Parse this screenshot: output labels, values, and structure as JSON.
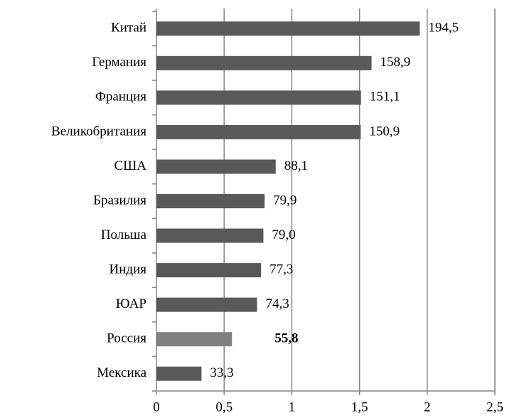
{
  "chart_data": {
    "type": "barh",
    "categories": [
      "Китай",
      "Германия",
      "Франция",
      "Великобритания",
      "США",
      "Бразилия",
      "Польша",
      "Индия",
      "ЮАР",
      "Россия",
      "Мексика"
    ],
    "values": [
      1.945,
      1.589,
      1.511,
      1.509,
      0.881,
      0.799,
      0.79,
      0.773,
      0.743,
      0.558,
      0.333
    ],
    "value_labels": [
      "194,5",
      "158,9",
      "151,1",
      "150,9",
      "88,1",
      "79,9",
      "79,0",
      "77,3",
      "74,3",
      "55,8",
      "33,3"
    ],
    "colors": [
      "#595959",
      "#595959",
      "#595959",
      "#595959",
      "#595959",
      "#595959",
      "#595959",
      "#595959",
      "#595959",
      "#808080",
      "#595959"
    ],
    "bold_value_labels": [
      false,
      false,
      false,
      false,
      false,
      false,
      false,
      false,
      false,
      true,
      false
    ],
    "xlim": [
      0,
      2.5
    ],
    "xticks": [
      0,
      {
        "value": 0.5,
        "label": "0,5"
      },
      1,
      {
        "value": 1.5,
        "label": "1,5"
      },
      2,
      {
        "value": 2.5,
        "label": "2,5"
      }
    ],
    "grid": true
  }
}
